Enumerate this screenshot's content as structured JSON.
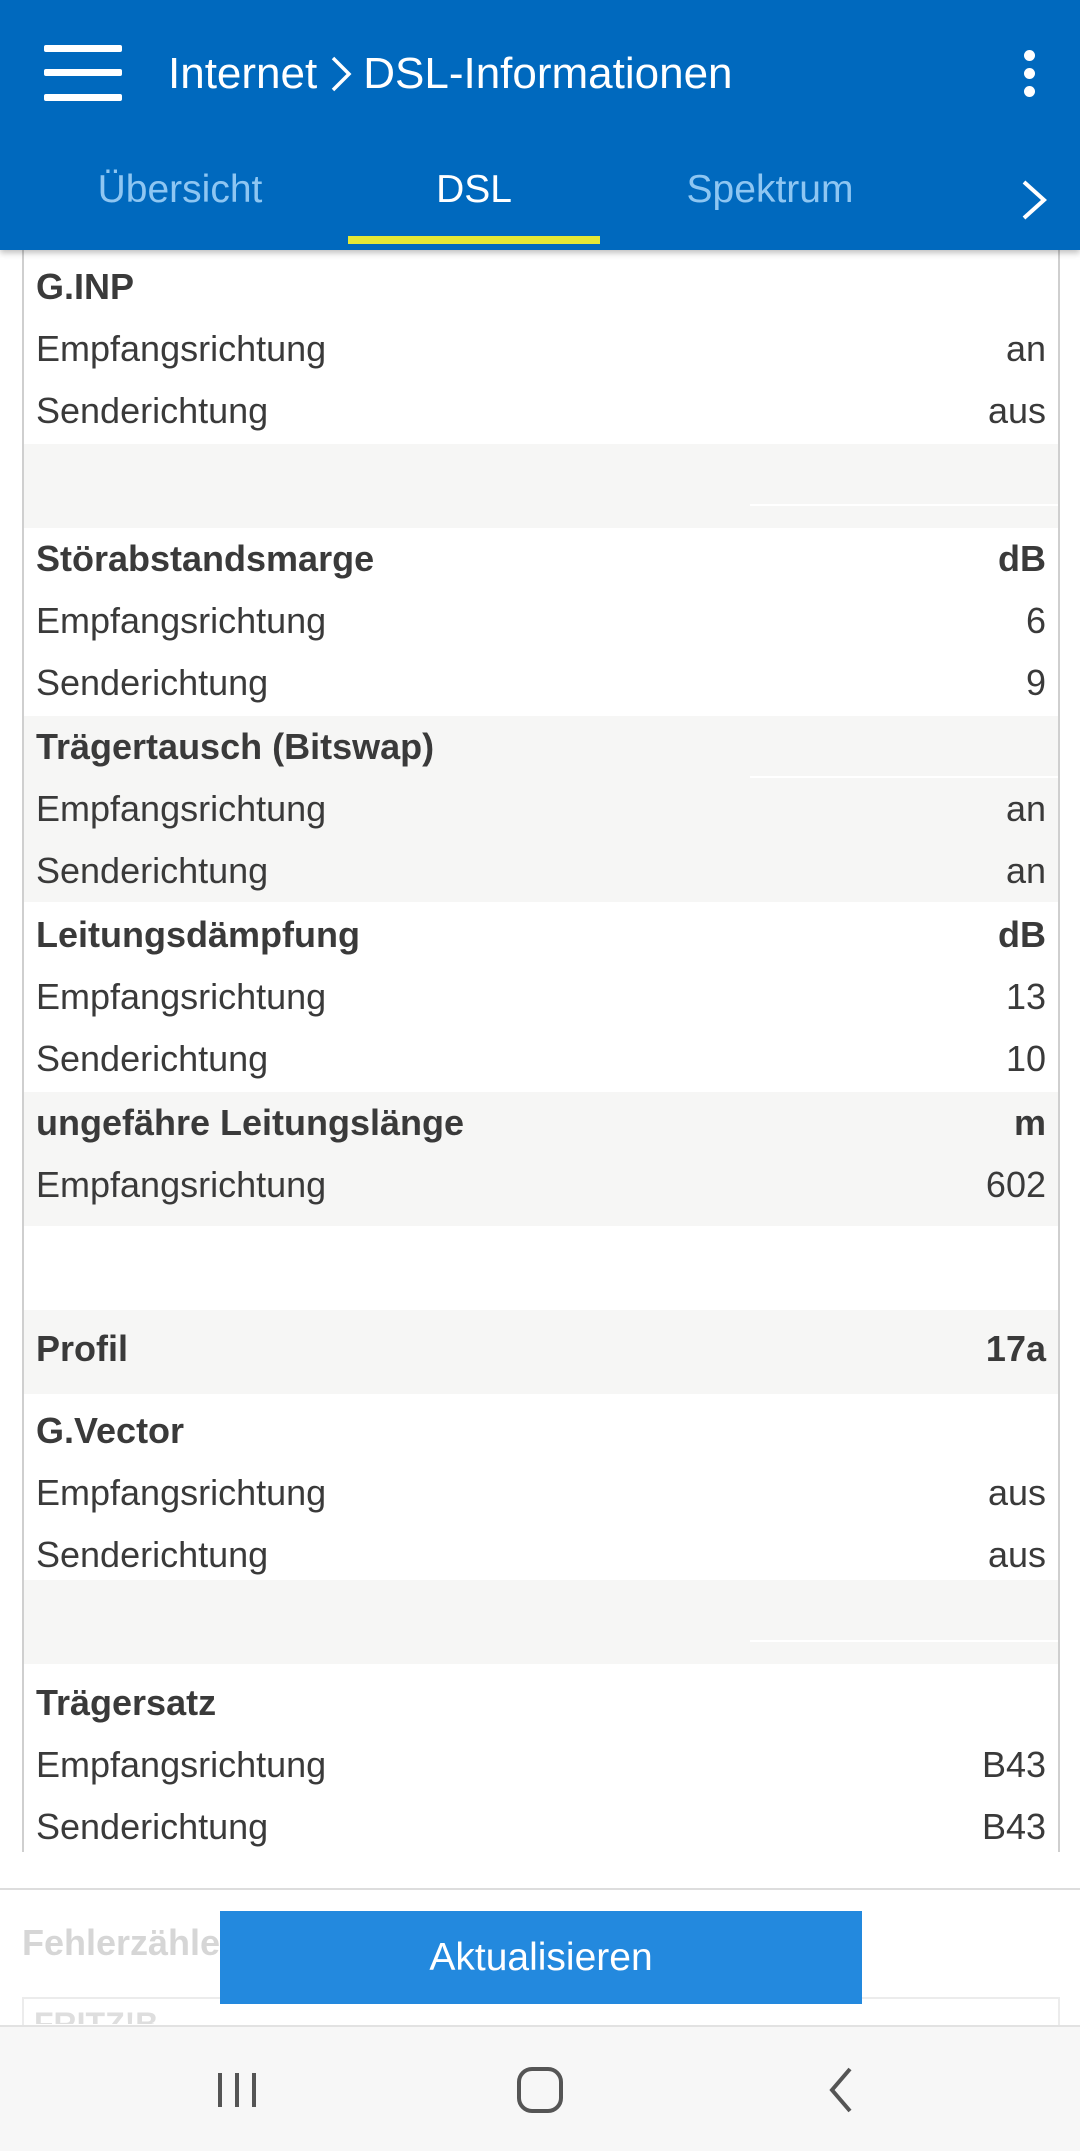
{
  "header": {
    "menu_icon": "hamburger-menu-icon",
    "breadcrumb": [
      "Internet",
      "DSL-Informationen"
    ],
    "more_icon": "more-vertical-icon",
    "bg_color": "#0069be"
  },
  "tabs": [
    {
      "label": "Übersicht",
      "active": false
    },
    {
      "label": "DSL",
      "active": true
    },
    {
      "label": "Spektrum",
      "active": false
    }
  ],
  "tab_indicator_color": "#e4e836",
  "sections": {
    "ginp": {
      "title": "G.INP",
      "unit": "",
      "rows": [
        {
          "label": "Empfangsrichtung",
          "value": "an"
        },
        {
          "label": "Senderichtung",
          "value": "aus"
        }
      ]
    },
    "snr": {
      "title": "Störabstandsmarge",
      "unit": "dB",
      "rows": [
        {
          "label": "Empfangsrichtung",
          "value": "6"
        },
        {
          "label": "Senderichtung",
          "value": "9"
        }
      ]
    },
    "bitswap": {
      "title": "Trägertausch (Bitswap)",
      "unit": "",
      "rows": [
        {
          "label": "Empfangsrichtung",
          "value": "an"
        },
        {
          "label": "Senderichtung",
          "value": "an"
        }
      ]
    },
    "attenuation": {
      "title": "Leitungsdämpfung",
      "unit": "dB",
      "rows": [
        {
          "label": "Empfangsrichtung",
          "value": "13"
        },
        {
          "label": "Senderichtung",
          "value": "10"
        }
      ]
    },
    "length": {
      "title": "ungefähre Leitungslänge",
      "unit": "m",
      "rows": [
        {
          "label": "Empfangsrichtung",
          "value": "602"
        }
      ]
    },
    "profile": {
      "title": "Profil",
      "value": "17a"
    },
    "gvector": {
      "title": "G.Vector",
      "unit": "",
      "rows": [
        {
          "label": "Empfangsrichtung",
          "value": "aus"
        },
        {
          "label": "Senderichtung",
          "value": "aus"
        }
      ]
    },
    "carrier": {
      "title": "Trägersatz",
      "unit": "",
      "rows": [
        {
          "label": "Empfangsrichtung",
          "value": "B43"
        },
        {
          "label": "Senderichtung",
          "value": "B43"
        }
      ]
    }
  },
  "next_section_title": "Fehlerzähler",
  "next_section_sub": "FRITZ!B",
  "update_button": {
    "label": "Aktualisieren",
    "color": "#2389de"
  },
  "system_nav": {
    "recents_icon": "recents-icon",
    "home_icon": "home-icon",
    "back_icon": "back-icon"
  }
}
